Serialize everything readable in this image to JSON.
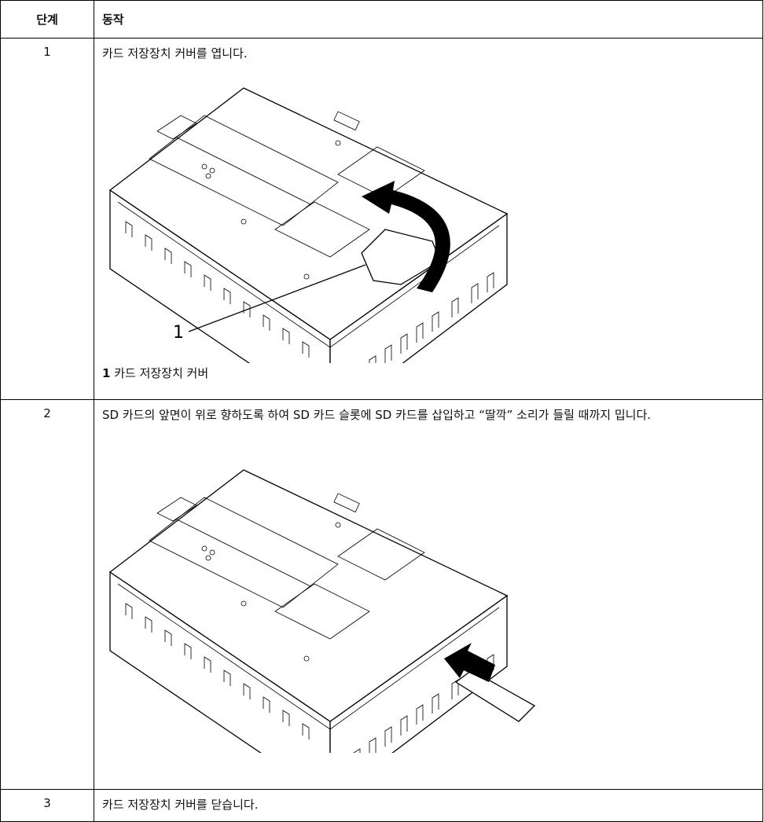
{
  "table": {
    "headers": [
      "단계",
      "동작"
    ],
    "rows": [
      {
        "step": "1",
        "text": "카드 저장장치 커버를 엽니다.",
        "callout": "1",
        "caption": {
          "number": "1",
          "text": "카드 저장장치 커버"
        }
      },
      {
        "step": "2",
        "text": "SD 카드의 앞면이 위로 향하도록 하여 SD 카드 슬롯에 SD 카드를 삽입하고 “딸깍” 소리가 들릴 때까지 밉니다."
      },
      {
        "step": "3",
        "text": "카드 저장장치 커버를 닫습니다."
      }
    ]
  }
}
